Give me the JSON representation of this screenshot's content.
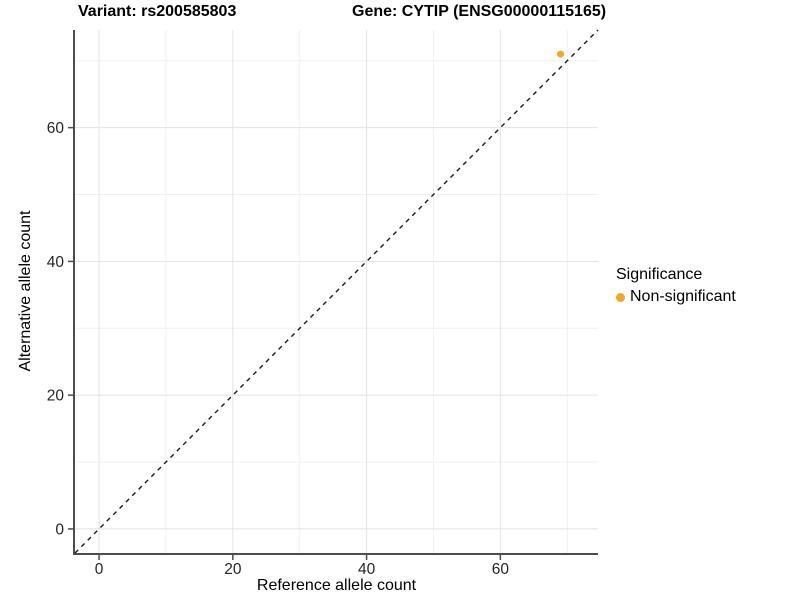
{
  "chart_data": {
    "type": "scatter",
    "title_left": "Variant: rs200585803",
    "title_right": "Gene: CYTIP (ENSG00000115165)",
    "xlabel": "Reference allele count",
    "ylabel": "Alternative allele count",
    "xlim": [
      -3.6,
      74.6
    ],
    "ylim": [
      -3.6,
      74.6
    ],
    "x_ticks": [
      0,
      20,
      40,
      60
    ],
    "y_ticks": [
      0,
      20,
      40,
      60
    ],
    "x_minor_ticks": [
      10,
      30,
      50,
      70
    ],
    "y_minor_ticks": [
      10,
      30,
      50,
      70
    ],
    "grid": true,
    "reference_line": {
      "type": "identity",
      "slope": 1,
      "intercept": 0,
      "linetype": "dashed"
    },
    "series": [
      {
        "name": "Non-significant",
        "color": "#F5A623",
        "points": [
          [
            69,
            71
          ]
        ]
      }
    ],
    "legend": {
      "title": "Significance",
      "position": "right",
      "entries": [
        {
          "label": "Non-significant",
          "color": "#F5A623"
        }
      ]
    }
  },
  "style": {
    "point_color": "#F5A623",
    "grid_major_color": "#E3E3E3",
    "grid_minor_color": "#F0F0F0",
    "axis_line_color": "#4D4D4D",
    "tick_mark_color": "#4D4D4D",
    "tick_label_color": "#262626",
    "reference_line_color": "#1A1A1A",
    "text_color": "#000000",
    "background_color": "#FFFFFF"
  }
}
